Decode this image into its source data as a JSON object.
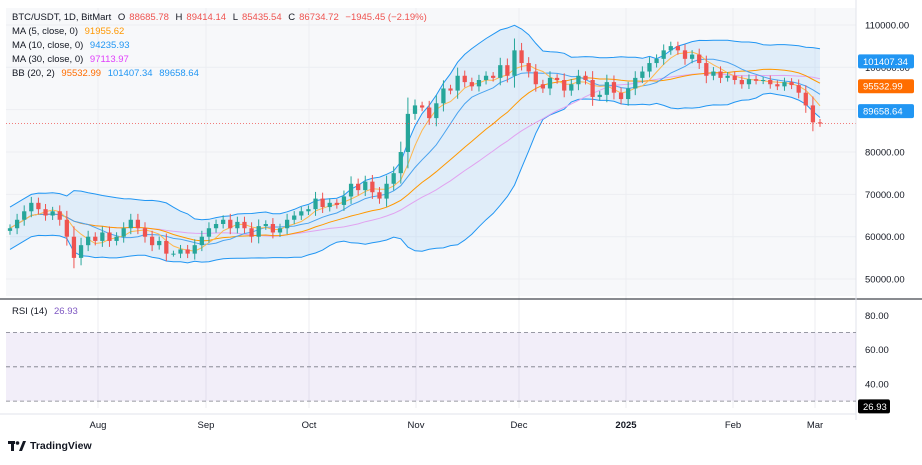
{
  "header": {
    "symbol": "BTC/USDT, 1D, BitMart",
    "open_label": "O",
    "open": "88685.78",
    "high_label": "H",
    "high": "89414.14",
    "low_label": "L",
    "low": "85435.54",
    "close_label": "C",
    "close": "86734.72",
    "change": "−1945.45 (−2.19%)"
  },
  "indicators": {
    "ma5": {
      "label": "MA (5, close, 0)",
      "value": "91955.62",
      "color": "#ff9800"
    },
    "ma10": {
      "label": "MA (10, close, 0)",
      "value": "94235.93",
      "color": "#2196f3"
    },
    "ma30": {
      "label": "MA (30, close, 0)",
      "value": "97113.97",
      "color": "#e040fb"
    },
    "bb": {
      "label": "BB (20, 2)",
      "basis": "95532.99",
      "upper": "101407.34",
      "lower": "89658.64",
      "basis_color": "#ff6d00",
      "band_color": "#2196f3"
    }
  },
  "rsi": {
    "label": "RSI (14)",
    "value": "26.93",
    "color": "#7e57c2"
  },
  "price_badges": {
    "upper": "101407.34",
    "basis": "95532.99",
    "lower": "89658.64"
  },
  "rsi_badge": "26.93",
  "branding": "TradingView",
  "chart_data": [
    {
      "type": "candlestick",
      "title": "BTC/USDT, 1D, BitMart",
      "x_labels": [
        "Aug",
        "Sep",
        "Oct",
        "Nov",
        "Dec",
        "2025",
        "Feb",
        "Mar"
      ],
      "y_ticks": [
        50000,
        60000,
        70000,
        80000,
        90000,
        100000,
        110000
      ],
      "y_tick_labels": [
        "50000.00",
        "60000.00",
        "70000.00",
        "80000.00",
        "90000.00",
        "100000.00",
        "110000.00"
      ],
      "ylim": [
        46000,
        114000
      ],
      "last_close_line": 86734.72,
      "up_color": "#26a69a",
      "down_color": "#ef5350",
      "close_series": [
        62000,
        64000,
        66000,
        68000,
        66500,
        65000,
        66000,
        64000,
        60000,
        55000,
        58000,
        60000,
        59000,
        61000,
        59000,
        60000,
        62000,
        64000,
        62000,
        60000,
        58000,
        59000,
        56000,
        56000,
        57000,
        56000,
        58000,
        60000,
        62000,
        63000,
        64000,
        62000,
        63500,
        62000,
        60000,
        62500,
        63000,
        61000,
        62000,
        64000,
        65000,
        66000,
        66500,
        69000,
        67000,
        68000,
        67500,
        69500,
        72500,
        71000,
        73000,
        70500,
        69000,
        72500,
        75000,
        80000,
        89000,
        91000,
        90500,
        88000,
        91500,
        95000,
        94500,
        98000,
        96500,
        95500,
        97000,
        98000,
        97500,
        100500,
        98000,
        104000,
        101000,
        99000,
        96000,
        95000,
        97500,
        97000,
        94500,
        96000,
        98000,
        97000,
        93000,
        93500,
        96500,
        94000,
        92500,
        95000,
        97500,
        99000,
        101000,
        102000,
        104000,
        105000,
        104000,
        102000,
        103000,
        101000,
        98000,
        99000,
        97500,
        98000,
        97000,
        96000,
        97200,
        96800,
        97000,
        96000,
        95500,
        96500,
        95800,
        94000,
        91000,
        87000,
        86734.72
      ],
      "bollinger": {
        "period": 20,
        "stddev": 2,
        "basis": 95532.99,
        "upper": 101407.34,
        "lower": 89658.64
      },
      "moving_averages": [
        {
          "name": "MA (5, close, 0)",
          "value": 91955.62
        },
        {
          "name": "MA (10, close, 0)",
          "value": 94235.93
        },
        {
          "name": "MA (30, close, 0)",
          "value": 97113.97
        }
      ]
    },
    {
      "type": "line",
      "title": "RSI (14)",
      "y_ticks": [
        40,
        60,
        80
      ],
      "y_tick_labels": [
        "40.00",
        "60.00",
        "80.00"
      ],
      "guides": [
        30,
        50,
        70
      ],
      "ylim": [
        26,
        86
      ],
      "values": [
        40,
        49,
        58,
        64,
        68,
        63,
        60,
        55,
        46,
        30,
        44,
        52,
        48,
        52,
        48,
        50,
        54,
        58,
        54,
        50,
        45,
        48,
        42,
        44,
        46,
        45,
        50,
        54,
        60,
        62,
        64,
        58,
        62,
        58,
        52,
        58,
        60,
        54,
        56,
        62,
        66,
        67,
        66,
        70,
        62,
        66,
        64,
        68,
        72,
        66,
        70,
        60,
        56,
        66,
        70,
        78,
        84,
        82,
        78,
        74,
        80,
        82,
        78,
        84,
        80,
        70,
        72,
        74,
        70,
        73,
        66,
        70,
        68,
        58,
        50,
        48,
        56,
        52,
        46,
        52,
        58,
        56,
        44,
        46,
        58,
        48,
        44,
        52,
        58,
        62,
        66,
        66,
        70,
        72,
        66,
        58,
        60,
        52,
        44,
        46,
        42,
        44,
        40,
        38,
        44,
        40,
        42,
        38,
        36,
        44,
        40,
        36,
        32,
        28,
        26.93
      ]
    }
  ]
}
